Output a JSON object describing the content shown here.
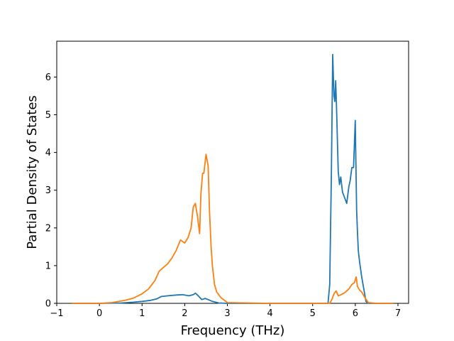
{
  "chart_data": {
    "type": "line",
    "title": "",
    "xlabel": "Frequency (THz)",
    "ylabel": "Partial Density of States",
    "xlim": [
      -1,
      7.25
    ],
    "ylim": [
      0,
      6.95
    ],
    "xticks": [
      -1,
      0,
      1,
      2,
      3,
      4,
      5,
      6,
      7
    ],
    "yticks": [
      0,
      1,
      2,
      3,
      4,
      5,
      6
    ],
    "grid": false,
    "legend": "none",
    "series": [
      {
        "color": "#1f77b4",
        "x": [
          -0.65,
          0.0,
          0.5,
          0.8,
          1.0,
          1.2,
          1.35,
          1.45,
          1.6,
          1.8,
          1.95,
          2.1,
          2.2,
          2.25,
          2.3,
          2.4,
          2.48,
          2.55,
          2.65,
          2.8,
          3.0,
          4.0,
          5.0,
          5.36,
          5.4,
          5.44,
          5.47,
          5.5,
          5.52,
          5.54,
          5.56,
          5.6,
          5.63,
          5.66,
          5.7,
          5.75,
          5.8,
          5.85,
          5.88,
          5.92,
          5.96,
          6.0,
          6.03,
          6.05,
          6.07,
          6.1,
          6.15,
          6.25,
          6.3,
          6.5,
          6.9
        ],
        "y": [
          0,
          0,
          0.01,
          0.03,
          0.05,
          0.08,
          0.12,
          0.18,
          0.2,
          0.22,
          0.23,
          0.2,
          0.23,
          0.27,
          0.22,
          0.1,
          0.13,
          0.1,
          0.05,
          0.01,
          0,
          0,
          0,
          0,
          0.5,
          3.5,
          6.6,
          5.5,
          5.35,
          5.9,
          5.2,
          3.5,
          3.15,
          3.35,
          2.95,
          2.8,
          2.65,
          3.1,
          3.25,
          3.6,
          3.6,
          4.85,
          2.5,
          1.9,
          1.4,
          1.1,
          0.7,
          0.05,
          0,
          0,
          0
        ]
      },
      {
        "color": "#ff7f0e",
        "x": [
          -0.65,
          0.0,
          0.3,
          0.6,
          0.8,
          1.0,
          1.15,
          1.3,
          1.4,
          1.5,
          1.6,
          1.7,
          1.8,
          1.9,
          2.0,
          2.08,
          2.15,
          2.2,
          2.25,
          2.3,
          2.35,
          2.38,
          2.42,
          2.45,
          2.5,
          2.55,
          2.58,
          2.62,
          2.65,
          2.7,
          2.75,
          2.85,
          3.0,
          4.0,
          5.0,
          5.4,
          5.45,
          5.5,
          5.55,
          5.6,
          5.65,
          5.75,
          5.85,
          5.92,
          5.98,
          6.02,
          6.05,
          6.1,
          6.15,
          6.2,
          6.3,
          6.5,
          6.9
        ],
        "y": [
          0,
          0,
          0.02,
          0.08,
          0.14,
          0.25,
          0.38,
          0.6,
          0.85,
          0.95,
          1.05,
          1.2,
          1.4,
          1.68,
          1.6,
          1.75,
          2.0,
          2.55,
          2.65,
          2.3,
          1.85,
          2.9,
          3.45,
          3.45,
          3.95,
          3.65,
          2.5,
          1.5,
          1.0,
          0.5,
          0.3,
          0.15,
          0.02,
          0,
          0,
          0,
          0.1,
          0.25,
          0.33,
          0.2,
          0.22,
          0.28,
          0.38,
          0.5,
          0.55,
          0.7,
          0.45,
          0.35,
          0.3,
          0.2,
          0.02,
          0,
          0
        ]
      }
    ]
  }
}
